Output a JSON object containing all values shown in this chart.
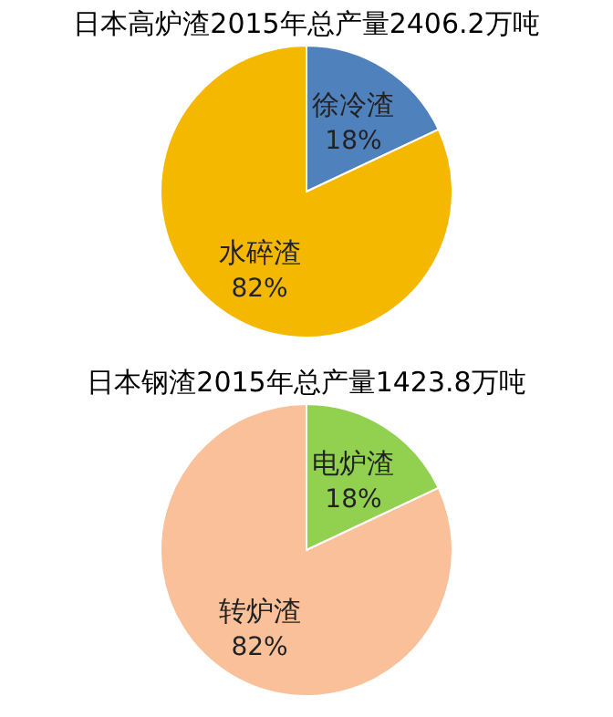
{
  "chart_data": [
    {
      "type": "pie",
      "title": "日本高炉渣2015年总产量2406.2万吨",
      "categories": [
        "徐冷渣",
        "水碎渣"
      ],
      "values": [
        18,
        82
      ],
      "colors": [
        "#4f81bd",
        "#f5b800"
      ],
      "value_labels": [
        "18%",
        "82%"
      ]
    },
    {
      "type": "pie",
      "title": "日本钢渣2015年总产量1423.8万吨",
      "categories": [
        "电炉渣",
        "转炉渣"
      ],
      "values": [
        18,
        82
      ],
      "colors": [
        "#92d050",
        "#f9c09a"
      ],
      "value_labels": [
        "18%",
        "82%"
      ]
    }
  ]
}
